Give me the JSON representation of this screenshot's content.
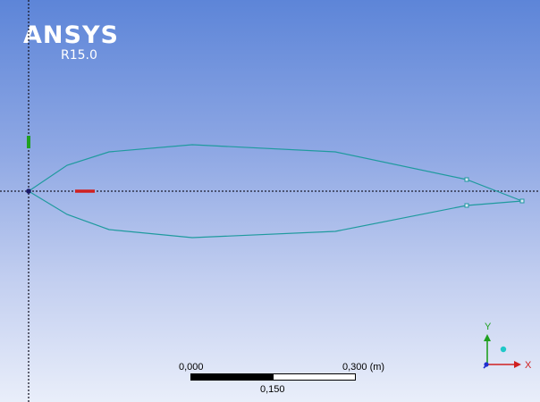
{
  "logo": {
    "brand": "ANSYS",
    "version": "R15.0"
  },
  "scale": {
    "start_label": "0,000",
    "end_label": "0,300 (m)",
    "mid_label": "0,150"
  },
  "triad": {
    "x_label": "X",
    "y_label": "Y"
  },
  "colors": {
    "sketch_line": "#1f9a9e",
    "origin_axes": "#1a1a2a",
    "x_axis": "#d02020",
    "y_axis": "#20a020",
    "z_axis": "#2030d0",
    "iso_ball": "#20c8c8"
  }
}
